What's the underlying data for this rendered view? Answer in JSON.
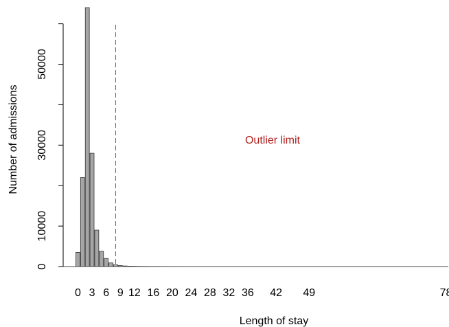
{
  "chart_data": {
    "type": "bar",
    "title": "",
    "xlabel": "Length of stay",
    "ylabel": "Number of admissions",
    "ylim": [
      0,
      63500
    ],
    "yticks": [
      0,
      10000,
      30000,
      50000
    ],
    "ytick_labels": [
      "0",
      "10000",
      "30000",
      "50000"
    ],
    "categories": [
      "0",
      "1",
      "2",
      "3",
      "4",
      "5",
      "6",
      "7",
      "8",
      "9",
      "10",
      "11",
      "12",
      "13",
      "14",
      "15",
      "16",
      "17",
      "18",
      "19",
      "20",
      "21",
      "22",
      "23",
      "24",
      "25",
      "26",
      "27",
      "28",
      "29",
      "30",
      "31",
      "32",
      "33",
      "34",
      "35",
      "36",
      "37",
      "38",
      "39",
      "40",
      "41",
      "42",
      "43",
      "44",
      "45",
      "46",
      "47",
      "48",
      "49",
      "50",
      "51",
      "52",
      "53",
      "54",
      "55",
      "56",
      "57",
      "58",
      "59",
      "60",
      "61",
      "62",
      "63",
      "64",
      "65",
      "66",
      "67",
      "68",
      "69",
      "70",
      "71",
      "72",
      "73",
      "74",
      "75",
      "76",
      "77",
      "78"
    ],
    "xtick_labels": [
      "0",
      "3",
      "6",
      "9",
      "12",
      "16",
      "20",
      "24",
      "28",
      "32",
      "36",
      "42",
      "49",
      "78"
    ],
    "xtick_categories": [
      "0",
      "3",
      "6",
      "9",
      "12",
      "16",
      "20",
      "24",
      "28",
      "32",
      "36",
      "42",
      "49",
      "78"
    ],
    "values": [
      3500,
      22000,
      64000,
      28000,
      9000,
      3800,
      2000,
      900,
      450,
      250,
      150,
      100,
      80,
      60,
      50,
      40,
      35,
      30,
      28,
      25,
      22,
      20,
      18,
      16,
      15,
      14,
      13,
      12,
      11,
      10,
      10,
      9,
      9,
      8,
      8,
      7,
      7,
      7,
      6,
      6,
      6,
      5,
      5,
      5,
      5,
      4,
      4,
      4,
      4,
      4,
      3,
      3,
      3,
      3,
      3,
      3,
      3,
      3,
      3,
      3,
      2,
      2,
      2,
      2,
      2,
      2,
      2,
      2,
      2,
      2,
      2,
      2,
      2,
      2,
      2,
      2,
      2,
      2,
      2
    ],
    "bar_color": "#a6a6a6",
    "outlier_limit_x": 8.5,
    "outlier_line_color": "#c0392b",
    "annotation": {
      "text": "Outlier limit",
      "color": "#b22222"
    }
  }
}
